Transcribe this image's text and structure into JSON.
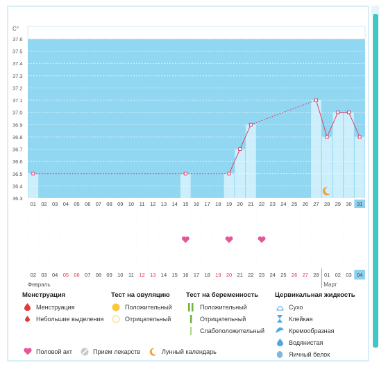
{
  "chart_data": {
    "type": "line",
    "y_unit": "C°",
    "ylim": [
      36.3,
      37.6
    ],
    "y_ticks": [
      "37.6",
      "37.5",
      "37.4",
      "37.3",
      "37.2",
      "37.1",
      "37.0",
      "36.9",
      "36.8",
      "36.7",
      "36.6",
      "36.5",
      "36.4",
      "36.3"
    ],
    "cycle_days": [
      "01",
      "02",
      "03",
      "04",
      "05",
      "06",
      "07",
      "08",
      "09",
      "10",
      "11",
      "12",
      "13",
      "14",
      "15",
      "16",
      "17",
      "18",
      "19",
      "20",
      "21",
      "22",
      "23",
      "24",
      "25",
      "26",
      "27",
      "28",
      "29",
      "30",
      "31"
    ],
    "dates": [
      "02",
      "03",
      "04",
      "05",
      "06",
      "07",
      "08",
      "09",
      "10",
      "11",
      "12",
      "13",
      "14",
      "15",
      "16",
      "17",
      "18",
      "19",
      "20",
      "21",
      "22",
      "23",
      "24",
      "25",
      "26",
      "27",
      "28",
      "01",
      "02",
      "03",
      "04"
    ],
    "weekend_dates": [
      3,
      4,
      10,
      11,
      17,
      18,
      24,
      25
    ],
    "today_index": 30,
    "temperatures": [
      {
        "day": 1,
        "temp": 36.5
      },
      {
        "day": 15,
        "temp": 36.5
      },
      {
        "day": 19,
        "temp": 36.5
      },
      {
        "day": 20,
        "temp": 36.7
      },
      {
        "day": 21,
        "temp": 36.9
      },
      {
        "day": 27,
        "temp": 37.1
      },
      {
        "day": 28,
        "temp": 36.8
      },
      {
        "day": 29,
        "temp": 37.0
      },
      {
        "day": 30,
        "temp": 37.0
      },
      {
        "day": 31,
        "temp": 36.8
      }
    ],
    "intercourse_days": [
      15,
      19,
      22
    ],
    "moon_day": 28,
    "month_labels": [
      "Февраль",
      "Март"
    ]
  },
  "legend": {
    "menstruation": {
      "title": "Менструация",
      "items": [
        "Менструация",
        "Небольшие выделения"
      ]
    },
    "ovulation": {
      "title": "Тест на овуляцию",
      "items": [
        "Положительный",
        "Отрицательный"
      ]
    },
    "pregnancy": {
      "title": "Тест на беременность",
      "items": [
        "Положительный",
        "Отрицательный",
        "Слабоположительный"
      ]
    },
    "cervical": {
      "title": "Цервикальная жидкость",
      "items": [
        "Сухо",
        "Клейкая",
        "Кремообразная",
        "Водянистая",
        "Яичный белок"
      ]
    },
    "bottom": [
      "Половой акт",
      "Прием лекарств",
      "Лунный календарь"
    ]
  },
  "colors": {
    "chart_bg": "#91d7f2",
    "measured_bar": "#cdeefb",
    "line": "#d9436a",
    "heart": "#e9559a",
    "weekend": "#e0334e",
    "today": "#8fd0ee",
    "moon": "#f0a030",
    "ovulation_positive": "#f8c93a",
    "pregnancy_green": "#6fb33a",
    "cervical_blue": "#4ea8e0",
    "menstruation_red": "#e03a3a",
    "frame": "#d7eef6",
    "accent_bar": "#41c7c3"
  }
}
